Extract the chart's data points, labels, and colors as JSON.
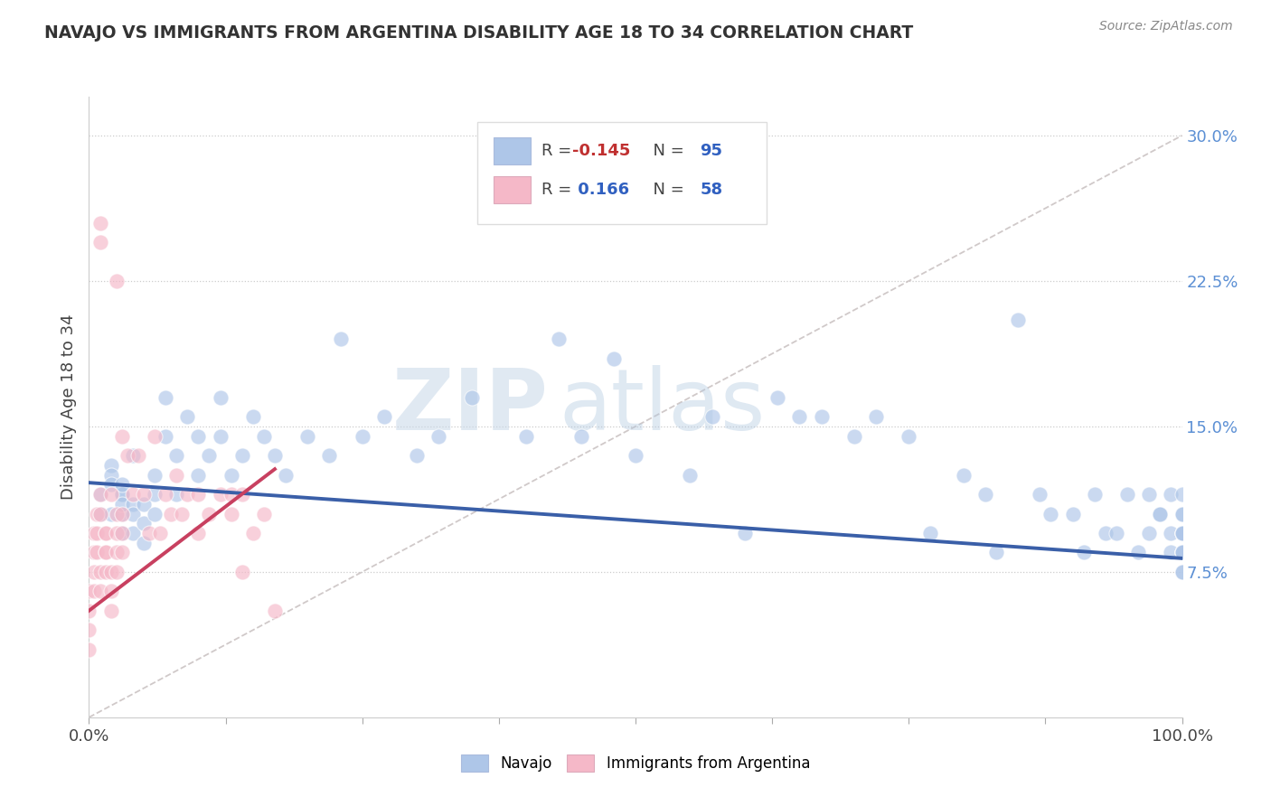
{
  "title": "NAVAJO VS IMMIGRANTS FROM ARGENTINA DISABILITY AGE 18 TO 34 CORRELATION CHART",
  "source": "Source: ZipAtlas.com",
  "xlabel": "",
  "ylabel": "Disability Age 18 to 34",
  "xlim": [
    0,
    1
  ],
  "ylim": [
    0,
    0.32
  ],
  "yticks": [
    0.075,
    0.15,
    0.225,
    0.3
  ],
  "ytick_labels": [
    "7.5%",
    "15.0%",
    "22.5%",
    "30.0%"
  ],
  "navajo_R": -0.145,
  "navajo_N": 95,
  "argentina_R": 0.166,
  "argentina_N": 58,
  "navajo_color": "#aec6e8",
  "argentina_color": "#f5b8c8",
  "navajo_line_color": "#3a5fa8",
  "argentina_line_color": "#c84060",
  "ref_line_color": "#c8c0c0",
  "background_color": "#ffffff",
  "watermark_zip": "ZIP",
  "watermark_atlas": "atlas",
  "tick_color": "#5b8fd4",
  "navajo_x": [
    0.01,
    0.01,
    0.02,
    0.02,
    0.02,
    0.02,
    0.03,
    0.03,
    0.03,
    0.03,
    0.03,
    0.03,
    0.04,
    0.04,
    0.04,
    0.04,
    0.05,
    0.05,
    0.05,
    0.06,
    0.06,
    0.06,
    0.07,
    0.07,
    0.08,
    0.08,
    0.09,
    0.1,
    0.1,
    0.11,
    0.12,
    0.12,
    0.13,
    0.14,
    0.15,
    0.16,
    0.17,
    0.18,
    0.2,
    0.22,
    0.23,
    0.25,
    0.27,
    0.3,
    0.32,
    0.35,
    0.37,
    0.4,
    0.43,
    0.45,
    0.48,
    0.5,
    0.55,
    0.57,
    0.6,
    0.63,
    0.65,
    0.67,
    0.7,
    0.72,
    0.75,
    0.77,
    0.8,
    0.82,
    0.83,
    0.85,
    0.87,
    0.88,
    0.9,
    0.91,
    0.92,
    0.93,
    0.94,
    0.95,
    0.96,
    0.97,
    0.97,
    0.98,
    0.98,
    0.99,
    0.99,
    0.99,
    1.0,
    1.0,
    1.0,
    1.0,
    1.0,
    1.0,
    1.0,
    1.0,
    1.0,
    1.0,
    1.0,
    1.0,
    1.0
  ],
  "navajo_y": [
    0.115,
    0.105,
    0.13,
    0.125,
    0.12,
    0.105,
    0.115,
    0.115,
    0.105,
    0.095,
    0.12,
    0.11,
    0.11,
    0.105,
    0.095,
    0.135,
    0.11,
    0.1,
    0.09,
    0.115,
    0.125,
    0.105,
    0.145,
    0.165,
    0.135,
    0.115,
    0.155,
    0.145,
    0.125,
    0.135,
    0.165,
    0.145,
    0.125,
    0.135,
    0.155,
    0.145,
    0.135,
    0.125,
    0.145,
    0.135,
    0.195,
    0.145,
    0.155,
    0.135,
    0.145,
    0.165,
    0.27,
    0.145,
    0.195,
    0.145,
    0.185,
    0.135,
    0.125,
    0.155,
    0.095,
    0.165,
    0.155,
    0.155,
    0.145,
    0.155,
    0.145,
    0.095,
    0.125,
    0.115,
    0.085,
    0.205,
    0.115,
    0.105,
    0.105,
    0.085,
    0.115,
    0.095,
    0.095,
    0.115,
    0.085,
    0.095,
    0.115,
    0.105,
    0.105,
    0.095,
    0.085,
    0.115,
    0.105,
    0.085,
    0.095,
    0.075,
    0.085,
    0.115,
    0.095,
    0.105,
    0.095,
    0.095,
    0.085,
    0.085,
    0.075
  ],
  "argentina_x": [
    0.0,
    0.0,
    0.0,
    0.0,
    0.005,
    0.005,
    0.005,
    0.005,
    0.007,
    0.007,
    0.007,
    0.01,
    0.01,
    0.01,
    0.01,
    0.01,
    0.01,
    0.015,
    0.015,
    0.015,
    0.015,
    0.015,
    0.02,
    0.02,
    0.02,
    0.02,
    0.025,
    0.025,
    0.025,
    0.025,
    0.025,
    0.03,
    0.03,
    0.03,
    0.03,
    0.035,
    0.04,
    0.045,
    0.05,
    0.055,
    0.06,
    0.065,
    0.07,
    0.075,
    0.08,
    0.085,
    0.09,
    0.1,
    0.1,
    0.11,
    0.12,
    0.13,
    0.13,
    0.14,
    0.14,
    0.15,
    0.16,
    0.17
  ],
  "argentina_y": [
    0.055,
    0.065,
    0.045,
    0.035,
    0.095,
    0.075,
    0.085,
    0.065,
    0.105,
    0.095,
    0.085,
    0.105,
    0.115,
    0.075,
    0.065,
    0.255,
    0.245,
    0.095,
    0.085,
    0.075,
    0.085,
    0.095,
    0.115,
    0.065,
    0.055,
    0.075,
    0.225,
    0.095,
    0.085,
    0.105,
    0.075,
    0.145,
    0.095,
    0.085,
    0.105,
    0.135,
    0.115,
    0.135,
    0.115,
    0.095,
    0.145,
    0.095,
    0.115,
    0.105,
    0.125,
    0.105,
    0.115,
    0.095,
    0.115,
    0.105,
    0.115,
    0.105,
    0.115,
    0.115,
    0.075,
    0.095,
    0.105,
    0.055
  ],
  "navajo_line_x0": 0.0,
  "navajo_line_x1": 1.0,
  "navajo_line_y0": 0.121,
  "navajo_line_y1": 0.082,
  "argentina_line_x0": 0.0,
  "argentina_line_x1": 0.17,
  "argentina_line_y0": 0.055,
  "argentina_line_y1": 0.128,
  "ref_line_x0": 0.0,
  "ref_line_x1": 1.0,
  "ref_line_y0": 0.0,
  "ref_line_y1": 0.3
}
